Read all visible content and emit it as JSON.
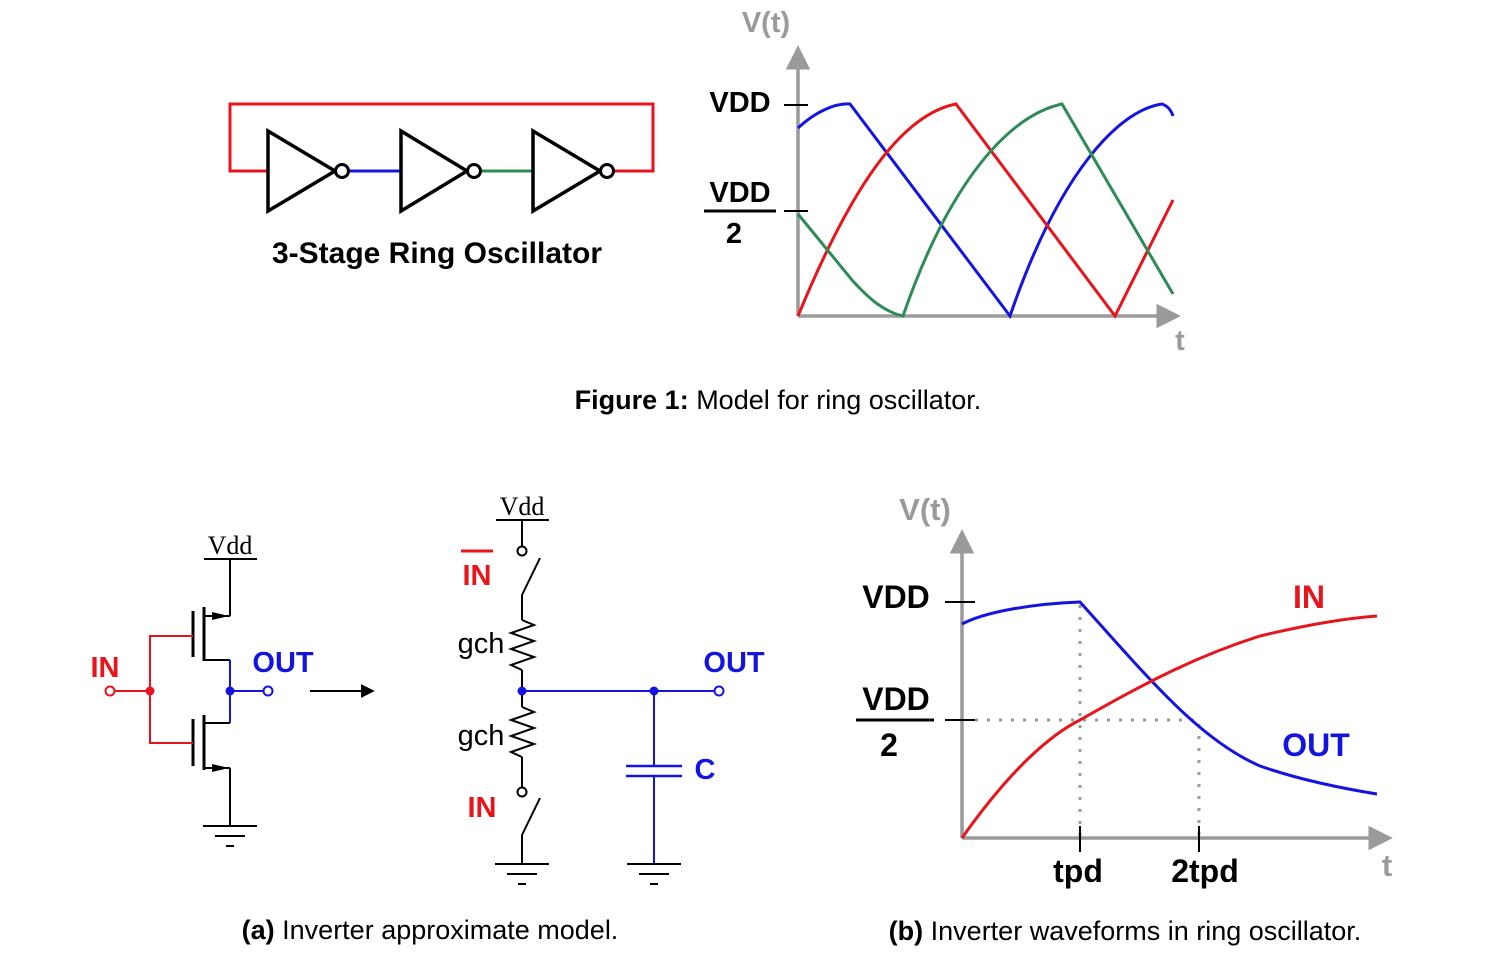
{
  "figure1": {
    "ring_title": "3-Stage Ring Oscillator",
    "axis_y": "V(t)",
    "axis_x": "t",
    "vdd": "VDD",
    "half_num": "VDD",
    "half_den": "2",
    "caption_bold": "Figure 1:",
    "caption_text": " Model for ring oscillator."
  },
  "figure_a": {
    "vdd_left": "Vdd",
    "in_left": "IN",
    "out_left": "OUT",
    "vdd_right": "Vdd",
    "in_bar": "IN",
    "gch_top": "gch",
    "gch_bottom": "gch",
    "out_right": "OUT",
    "cap_c": "C",
    "in_bottom": "IN",
    "caption_bold": "(a)",
    "caption_text": " Inverter approximate model."
  },
  "figure_b": {
    "axis_y": "V(t)",
    "axis_x": "t",
    "vdd": "VDD",
    "half_num": "VDD",
    "half_den": "2",
    "in_label": "IN",
    "out_label": "OUT",
    "tick_tpd": "tpd",
    "tick_2tpd": "2tpd",
    "caption_bold": "(b)",
    "caption_text": " Inverter waveforms in ring oscillator."
  },
  "colors": {
    "red": "#e8141c",
    "blue": "#1414e0",
    "green": "#2e8b57",
    "axis": "#9a9a9a"
  }
}
